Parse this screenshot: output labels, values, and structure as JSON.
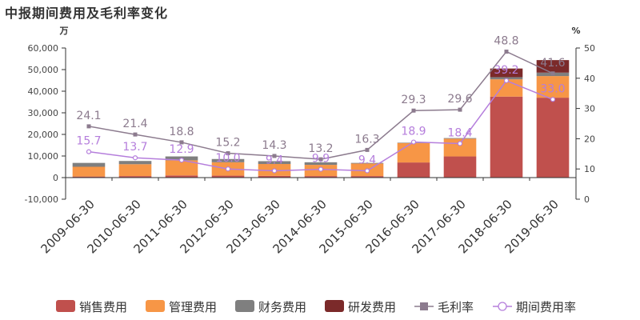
{
  "chart_data": {
    "type": "bar",
    "title": "中报期间费用及毛利率变化",
    "left_unit": "万",
    "right_unit": "%",
    "categories": [
      "2009-06-30",
      "2010-06-30",
      "2011-06-30",
      "2012-06-30",
      "2013-06-30",
      "2014-06-30",
      "2015-06-30",
      "2016-06-30",
      "2017-06-30",
      "2018-06-30",
      "2019-06-30"
    ],
    "ylim_left": [
      -10000,
      60000
    ],
    "yticks_left": [
      "60,000",
      "50,000",
      "40,000",
      "30,000",
      "20,000",
      "10,000",
      "0",
      "-10,000"
    ],
    "ylim_right": [
      0,
      50
    ],
    "yticks_right": [
      "50",
      "40",
      "30",
      "20",
      "10",
      "0"
    ],
    "bar_series": [
      {
        "name": "销售费用",
        "color": "#c0504d",
        "values": [
          500,
          700,
          1000,
          900,
          800,
          700,
          700,
          7000,
          9800,
          37500,
          37000
        ]
      },
      {
        "name": "管理费用",
        "color": "#f79646",
        "values": [
          4500,
          5500,
          7000,
          6200,
          5500,
          5200,
          5800,
          9000,
          8200,
          8000,
          10000
        ]
      },
      {
        "name": "财务费用",
        "color": "#7f7f7f",
        "values": [
          1800,
          1500,
          1800,
          1500,
          1300,
          1200,
          300,
          200,
          300,
          1000,
          1600
        ]
      },
      {
        "name": "研发费用",
        "color": "#7b2a2a",
        "values": [
          0,
          0,
          0,
          0,
          0,
          0,
          0,
          0,
          0,
          4000,
          5800
        ]
      }
    ],
    "line_series": [
      {
        "name": "毛利率",
        "color": "#8c7b8e",
        "marker": "square",
        "values": [
          24.1,
          21.4,
          18.8,
          15.2,
          14.3,
          13.2,
          16.3,
          29.3,
          29.6,
          48.8,
          41.6
        ]
      },
      {
        "name": "期间费用率",
        "color": "#b57edc",
        "marker": "circle",
        "values": [
          15.7,
          13.7,
          12.9,
          10.0,
          9.4,
          9.9,
          9.4,
          18.9,
          18.4,
          39.2,
          33.0
        ]
      }
    ],
    "legend_position": "bottom"
  }
}
